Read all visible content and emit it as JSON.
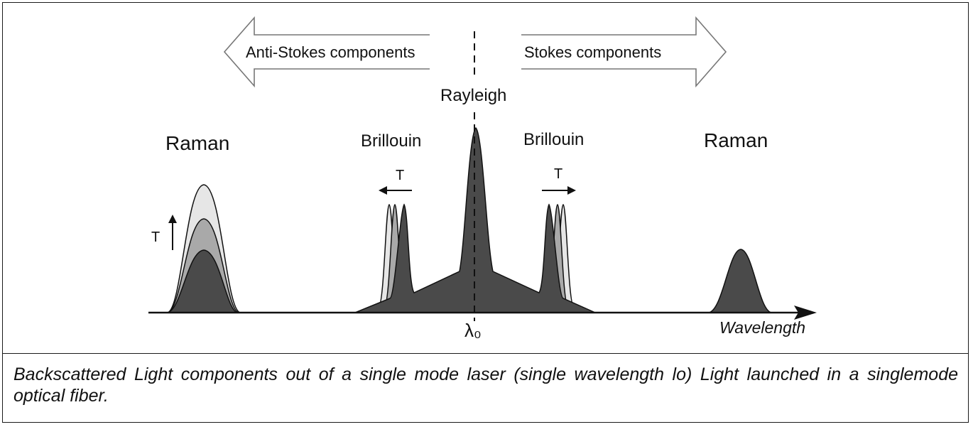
{
  "labels": {
    "anti_stokes": "Anti-Stokes components",
    "stokes": "Stokes components",
    "rayleigh": "Rayleigh",
    "raman_left": "Raman",
    "raman_right": "Raman",
    "brillouin_left": "Brillouin",
    "brillouin_right": "Brillouin",
    "t_raman": "T",
    "t_brillouin_left": "T",
    "t_brillouin_right": "T",
    "lambda_zero": "λ₀",
    "x_axis": "Wavelength"
  },
  "caption": "Backscattered Light components out of a single mode laser (single wavelength lo) Light launched in a singlemode optical fiber.",
  "colors": {
    "dark_fill": "#4a4a4a",
    "mid_fill": "#a9a9a9",
    "light_fill": "#e6e6e6",
    "stroke": "#111111"
  }
}
